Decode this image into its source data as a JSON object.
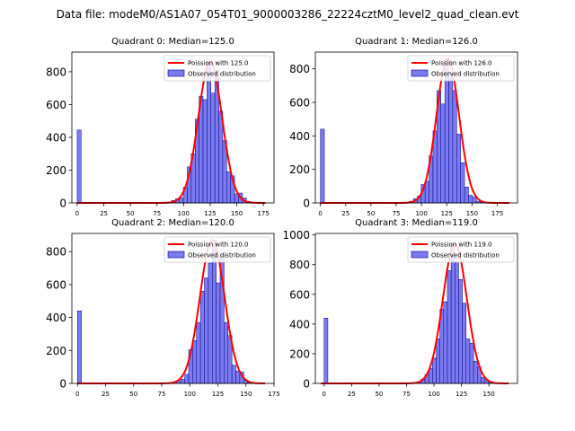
{
  "figure": {
    "suptitle": "Data file: modeM0/AS1A07_054T01_9000003286_22224cztM0_level2_quad_clean.evt"
  },
  "legend": {
    "observed_label": "Observed distribution",
    "colors": {
      "fit": "#ff0000",
      "bars": "#7b7bef",
      "bar_edge": "#00008b"
    }
  },
  "chart_data": [
    {
      "type": "bar",
      "title": "Quadrant 0: Median=125.0",
      "fit_label": "Poission with 125.0",
      "mu": 125.0,
      "xlim": [
        -5,
        185
      ],
      "ylim": [
        0,
        920
      ],
      "xticks": [
        0,
        25,
        50,
        75,
        100,
        125,
        150,
        175
      ],
      "yticks": [
        0,
        200,
        400,
        600,
        800
      ],
      "bin_width": 3.7,
      "bins": [
        [
          0,
          445
        ],
        [
          85,
          5
        ],
        [
          88.7,
          15
        ],
        [
          92.4,
          25
        ],
        [
          96.1,
          30
        ],
        [
          99.8,
          95
        ],
        [
          103.5,
          220
        ],
        [
          107.2,
          300
        ],
        [
          110.9,
          510
        ],
        [
          114.6,
          650
        ],
        [
          118.3,
          630
        ],
        [
          122,
          860
        ],
        [
          125.7,
          670
        ],
        [
          129.4,
          810
        ],
        [
          133.1,
          560
        ],
        [
          136.8,
          380
        ],
        [
          140.5,
          190
        ],
        [
          144.2,
          165
        ],
        [
          147.9,
          55
        ],
        [
          151.6,
          60
        ],
        [
          155.3,
          30
        ],
        [
          159,
          10
        ],
        [
          162.7,
          5
        ]
      ]
    },
    {
      "type": "bar",
      "title": "Quadrant 1: Median=126.0",
      "fit_label": "Poission with 126.0",
      "mu": 126.0,
      "xlim": [
        -5,
        195
      ],
      "ylim": [
        0,
        900
      ],
      "xticks": [
        0,
        25,
        50,
        75,
        100,
        125,
        150,
        175
      ],
      "yticks": [
        0,
        200,
        400,
        600,
        800
      ],
      "bin_width": 3.9,
      "bins": [
        [
          0,
          440
        ],
        [
          88,
          10
        ],
        [
          91.9,
          25
        ],
        [
          95.8,
          40
        ],
        [
          99.7,
          110
        ],
        [
          103.6,
          130
        ],
        [
          107.5,
          280
        ],
        [
          111.4,
          430
        ],
        [
          115.3,
          670
        ],
        [
          119.2,
          590
        ],
        [
          123.1,
          860
        ],
        [
          127,
          780
        ],
        [
          130.9,
          670
        ],
        [
          134.8,
          410
        ],
        [
          138.7,
          240
        ],
        [
          142.6,
          95
        ],
        [
          146.5,
          45
        ],
        [
          150.4,
          35
        ],
        [
          154.3,
          10
        ],
        [
          158.2,
          5
        ]
      ]
    },
    {
      "type": "bar",
      "title": "Quadrant 2: Median=120.0",
      "fit_label": "Poission with 120.0",
      "mu": 120.0,
      "xlim": [
        -5,
        175
      ],
      "ylim": [
        0,
        910
      ],
      "xticks": [
        0,
        25,
        50,
        75,
        100,
        125,
        150,
        175
      ],
      "yticks": [
        0,
        200,
        400,
        600,
        800
      ],
      "bin_width": 3.5,
      "bins": [
        [
          0,
          440
        ],
        [
          85,
          10
        ],
        [
          88.5,
          15
        ],
        [
          92,
          25
        ],
        [
          95.5,
          55
        ],
        [
          99,
          205
        ],
        [
          102.5,
          260
        ],
        [
          106,
          370
        ],
        [
          109.5,
          560
        ],
        [
          113,
          640
        ],
        [
          116.5,
          730
        ],
        [
          120,
          870
        ],
        [
          123.5,
          610
        ],
        [
          127,
          780
        ],
        [
          130.5,
          370
        ],
        [
          134,
          290
        ],
        [
          137.5,
          110
        ],
        [
          141,
          75
        ],
        [
          144.5,
          70
        ],
        [
          148,
          20
        ],
        [
          151.5,
          5
        ]
      ]
    },
    {
      "type": "bar",
      "title": "Quadrant 3: Median=119.0",
      "fit_label": "Poission with 119.0",
      "mu": 119.0,
      "xlim": [
        -8,
        176
      ],
      "ylim": [
        0,
        1010
      ],
      "xticks": [
        0,
        25,
        50,
        75,
        100,
        125,
        150
      ],
      "yticks": [
        0,
        200,
        400,
        600,
        800,
        1000
      ],
      "bin_width": 3.4,
      "bins": [
        [
          0,
          440
        ],
        [
          85,
          10
        ],
        [
          88.4,
          30
        ],
        [
          91.8,
          60
        ],
        [
          95.2,
          100
        ],
        [
          98.6,
          170
        ],
        [
          102,
          300
        ],
        [
          105.4,
          500
        ],
        [
          108.8,
          550
        ],
        [
          112.2,
          760
        ],
        [
          115.6,
          940
        ],
        [
          119,
          820
        ],
        [
          122.4,
          700
        ],
        [
          125.8,
          540
        ],
        [
          129.2,
          300
        ],
        [
          132.6,
          270
        ],
        [
          136,
          150
        ],
        [
          139.4,
          110
        ],
        [
          142.8,
          40
        ],
        [
          146.2,
          20
        ],
        [
          149.6,
          10
        ]
      ]
    }
  ]
}
